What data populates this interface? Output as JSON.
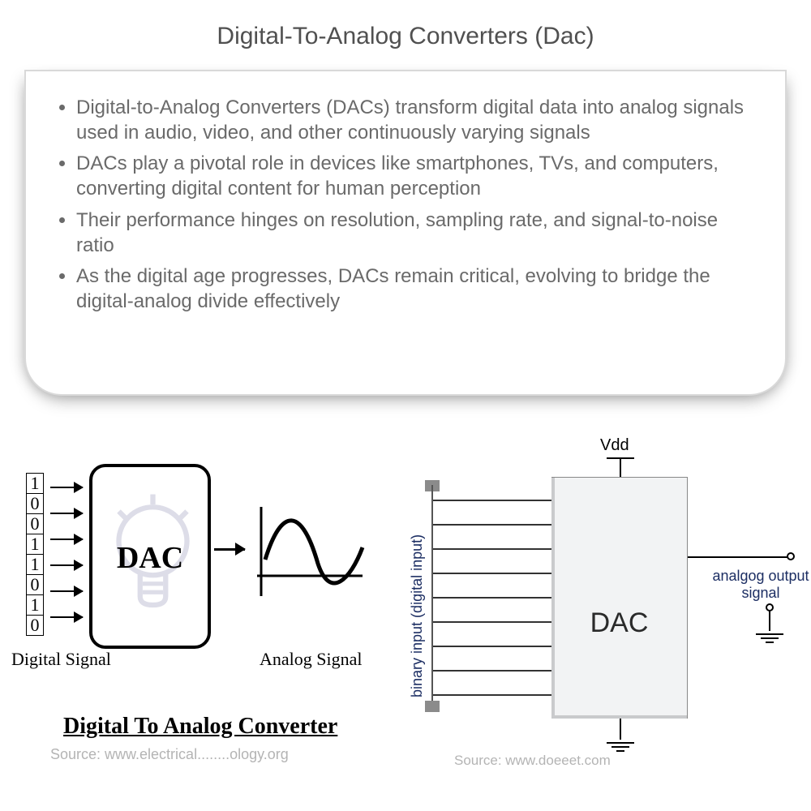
{
  "title": "Digital-To-Analog Converters (Dac)",
  "bullets": [
    "Digital-to-Analog Converters (DACs) transform digital data into analog signals used in audio, video, and other continuously varying signals",
    "DACs play a pivotal role in devices like smartphones, TVs, and computers, converting digital content for human perception",
    "Their performance hinges on resolution, sampling rate, and signal-to-noise ratio",
    "As the digital age progresses, DACs remain critical, evolving to bridge the digital-analog divide effectively"
  ],
  "left": {
    "bits": [
      "1",
      "0",
      "0",
      "1",
      "1",
      "0",
      "1",
      "0"
    ],
    "dac_label": "DAC",
    "digital_label": "Digital Signal",
    "analog_label": "Analog Signal",
    "caption": "Digital To Analog Converter",
    "source": "Source: www.electrical........ology.org",
    "arrow_in_positions": [
      40,
      72,
      104,
      136,
      168,
      200
    ],
    "box": {
      "border_color": "#000000",
      "border_radius": 20
    },
    "wave": {
      "stroke": "#000000",
      "stroke_width": 4
    }
  },
  "right": {
    "dac_label": "DAC",
    "vdd_label": "Vdd",
    "binary_label": "binary input (digital input)",
    "output_label_1": "analgog output",
    "output_label_2": "signal",
    "source": "Source: www.doeeet.com",
    "input_line_y": [
      76,
      106,
      136,
      166,
      196,
      226,
      256,
      286,
      316
    ],
    "input_line_width": 146,
    "box": {
      "bg": "#f2f3f4"
    },
    "text_color": "#1c2e63"
  },
  "colors": {
    "title": "#505050",
    "bullet": "#6a6a6a",
    "card_border": "#d9d9d9",
    "source": "#b4b4b4"
  },
  "type": "infographic"
}
